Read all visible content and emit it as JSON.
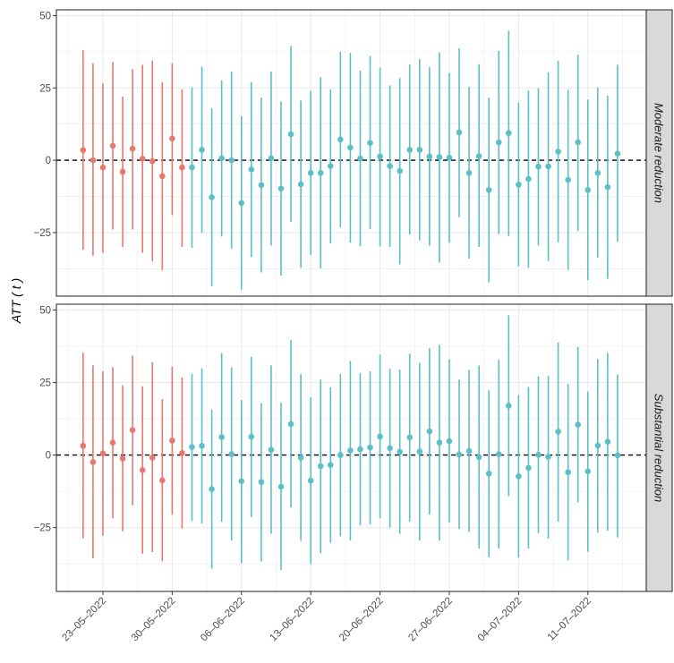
{
  "chart_data": {
    "type": "errorbar-scatter",
    "ylabel": "ATT ( t )",
    "xlabel": "",
    "ylim": [
      -47,
      52
    ],
    "y_ticks": [
      -25,
      0,
      25,
      50
    ],
    "y_tick_labels": [
      "−25",
      "0",
      "25",
      "50"
    ],
    "x_tick_labels": [
      "23–05–2022",
      "30–05–2022",
      "06–06–2022",
      "13–06–2022",
      "20–06–2022",
      "27–06–2022",
      "04–07–2022",
      "11–07–2022"
    ],
    "x_tick_day_index": [
      2,
      9,
      16,
      23,
      30,
      37,
      44,
      51
    ],
    "x_start_date": "21-05-2022",
    "x_range_days": [
      -2.7,
      56.9
    ],
    "reference_line": 0,
    "grid": true,
    "legend": "none",
    "colors": {
      "pre": "#E8776F",
      "post": "#5BC0C5",
      "strip_bg": "#D9D9D9",
      "panel_border": "#333333",
      "grid": "#EBEBEB"
    },
    "group_split_index": 11,
    "panels": [
      {
        "label": "Moderate reduction",
        "estimate": [
          3.5,
          0,
          -2.5,
          5,
          -4,
          4,
          0.5,
          -0.3,
          -5.5,
          7.5,
          -2.5,
          -2.5,
          3.6,
          -12.8,
          0.7,
          0,
          -14.8,
          -3.2,
          -8.6,
          0.7,
          -9.8,
          9,
          -8.3,
          -4.4,
          -4.4,
          -2,
          7.2,
          4.4,
          0.6,
          6,
          1.3,
          -2,
          -3.7,
          3.6,
          3.6,
          1.3,
          1.1,
          0.9,
          9.6,
          -4.4,
          1.4,
          -10.3,
          6.2,
          9.4,
          -8.4,
          -6.5,
          -2.2,
          -2.1,
          3,
          -6.8,
          6.2,
          -10.3,
          -4.4,
          -9.3,
          2.3
        ],
        "upper": [
          38,
          33.5,
          26.5,
          34,
          22,
          31.5,
          33,
          34.5,
          27,
          33.5,
          24.5,
          25.2,
          32.4,
          18,
          27.6,
          30.7,
          15.2,
          27,
          21.7,
          30.7,
          20.3,
          39.5,
          20.6,
          24,
          28.7,
          24.5,
          37.5,
          37.1,
          31,
          36,
          32.1,
          25.9,
          28.4,
          33.1,
          35,
          32.2,
          37.3,
          30.2,
          38.7,
          25.4,
          33.2,
          21.6,
          37.8,
          44.8,
          19.9,
          24.1,
          24.9,
          30.4,
          34.4,
          24.3,
          36.5,
          21,
          25.1,
          22.3,
          33
        ],
        "lower": [
          -31,
          -33,
          -32,
          -24,
          -30,
          -24,
          -32,
          -35,
          -38,
          -19,
          -30,
          -30.3,
          -25.1,
          -43.6,
          -26.4,
          -30.6,
          -44.7,
          -33.5,
          -38.8,
          -29.5,
          -39.9,
          -21.3,
          -37.2,
          -32.7,
          -37.4,
          -28.7,
          -23.2,
          -28.5,
          -29.8,
          -23.9,
          -29.8,
          -30,
          -36,
          -25.7,
          -27.7,
          -29.6,
          -35.4,
          -28.5,
          -19.7,
          -34,
          -30,
          -42.2,
          -25.5,
          -26.2,
          -36.7,
          -37.2,
          -29.5,
          -34.8,
          -28.4,
          -37.9,
          -24.5,
          -41.5,
          -33.7,
          -41,
          -28.2
        ]
      },
      {
        "label": "Substantial reduction",
        "estimate": [
          3.2,
          -2.4,
          0.6,
          4.3,
          -1.2,
          8.6,
          -5.2,
          -0.9,
          -8.7,
          5,
          0.7,
          2.8,
          3.2,
          -11.7,
          6.2,
          0.3,
          -9,
          6.3,
          -9.3,
          1.8,
          -10.9,
          10.7,
          -0.9,
          -8.8,
          -3.8,
          -3.4,
          0,
          1.6,
          2,
          2.6,
          6.4,
          2.4,
          1.1,
          6.1,
          1.2,
          8.2,
          4.3,
          4.8,
          0.2,
          1.4,
          -0.7,
          -6.4,
          0.3,
          17,
          -7.3,
          -4.4,
          0.1,
          -0.6,
          8.1,
          -5.9,
          10.5,
          -5.6,
          3.3,
          4.6,
          -0.1
        ],
        "upper": [
          35.3,
          30.9,
          28.9,
          30.3,
          24.1,
          34.3,
          23.7,
          32,
          19.3,
          30.5,
          26.7,
          28,
          29.9,
          15.7,
          35.2,
          30.2,
          19,
          33.9,
          17.9,
          30.9,
          18,
          39.7,
          27.9,
          19.9,
          26,
          23.4,
          27.9,
          32.4,
          28.2,
          28.9,
          34.6,
          29.7,
          29.4,
          35,
          31.8,
          36.9,
          38,
          33,
          26,
          29.4,
          30.9,
          22.3,
          32.9,
          48.2,
          20.6,
          23.5,
          27.1,
          27.3,
          38.8,
          24.5,
          37.3,
          21.9,
          33.1,
          35.2,
          27.8
        ],
        "lower": [
          -28.7,
          -35.6,
          -27.8,
          -21.8,
          -26.3,
          -17.3,
          -34,
          -33.4,
          -36.6,
          -20.5,
          -25.3,
          -22.7,
          -23.6,
          -39.1,
          -23,
          -29.5,
          -37.3,
          -21.4,
          -36.7,
          -27.1,
          -39.6,
          -18.1,
          -29.6,
          -37.6,
          -33.8,
          -30.2,
          -28,
          -29.4,
          -24.3,
          -23.9,
          -21.8,
          -24.9,
          -27.2,
          -23,
          -29.4,
          -20.5,
          -29.5,
          -23.3,
          -25.5,
          -26.5,
          -32.2,
          -35.2,
          -32.2,
          -14.1,
          -35.4,
          -32.2,
          -26.9,
          -28.8,
          -22.9,
          -36.3,
          -16.3,
          -33.3,
          -26.7,
          -26.1,
          -28.4
        ]
      }
    ]
  }
}
